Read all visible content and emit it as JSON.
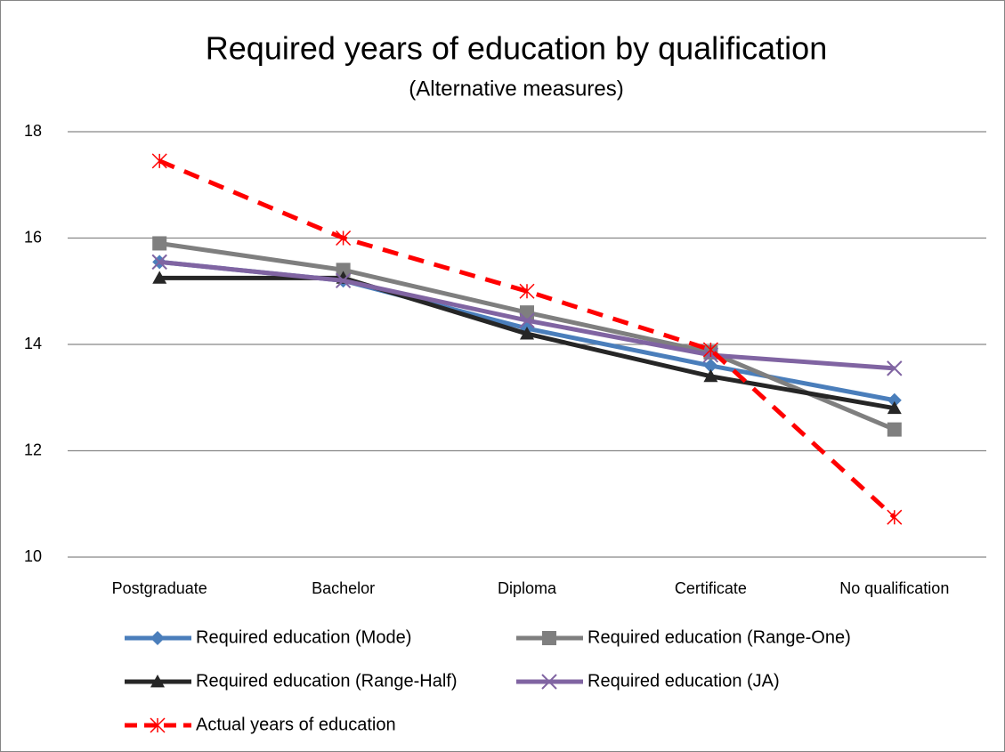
{
  "chart_data": {
    "type": "line",
    "title": "Required years of education by qualification",
    "subtitle": "(Alternative measures)",
    "categories": [
      "Postgraduate",
      "Bachelor",
      "Diploma",
      "Certificate",
      "No qualification"
    ],
    "series": [
      {
        "name": "Required education (Mode)",
        "color": "#4a7ebb",
        "marker": "diamond",
        "line_style": "solid",
        "values": [
          15.55,
          15.2,
          14.3,
          13.6,
          12.95
        ]
      },
      {
        "name": "Required education (Range-One)",
        "color": "#7f7f7f",
        "marker": "square",
        "line_style": "solid",
        "values": [
          15.9,
          15.4,
          14.6,
          13.85,
          12.4
        ]
      },
      {
        "name": "Required education (Range-Half)",
        "color": "#262626",
        "marker": "triangle",
        "line_style": "solid",
        "values": [
          15.25,
          15.25,
          14.2,
          13.4,
          12.8
        ]
      },
      {
        "name": "Required education (JA)",
        "color": "#8064a2",
        "marker": "x",
        "line_style": "solid",
        "values": [
          15.55,
          15.2,
          14.45,
          13.8,
          13.55
        ]
      },
      {
        "name": "Actual years of education",
        "color": "#ff0000",
        "marker": "asterisk",
        "line_style": "dashed",
        "values": [
          17.45,
          16.0,
          15.0,
          13.9,
          10.75
        ]
      }
    ],
    "ylim": [
      10,
      18
    ],
    "yticks": [
      10,
      12,
      14,
      16,
      18
    ],
    "grid": true,
    "legend": "bottom"
  }
}
